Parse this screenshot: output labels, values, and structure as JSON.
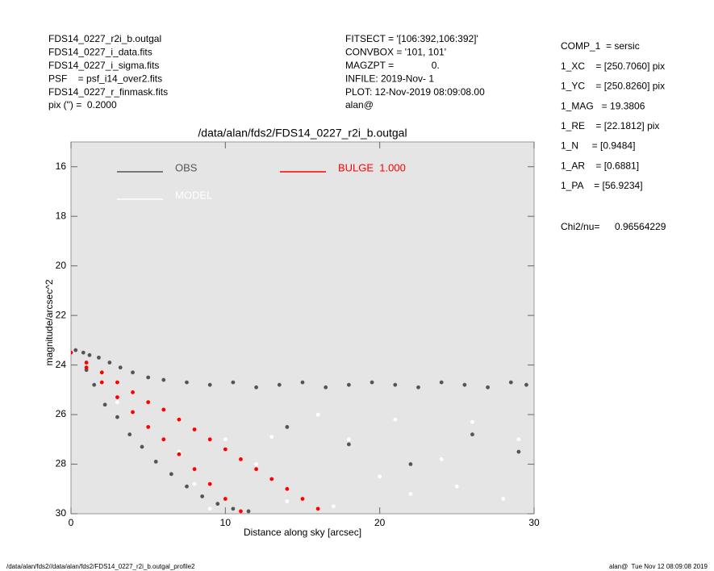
{
  "header_left": [
    "FDS14_0227_r2i_b.outgal",
    "FDS14_0227_i_data.fits",
    "FDS14_0227_i_sigma.fits",
    "PSF    = psf_i14_over2.fits",
    "FDS14_0227_r_finmask.fits",
    "pix (\") =  0.2000"
  ],
  "header_middle": [
    "FITSECT = '[106:392,106:392]'",
    "CONVBOX = '101, 101'",
    "MAGZPT =              0.",
    "INFILE: 2019-Nov- 1",
    "PLOT: 12-Nov-2019 08:09:08.00",
    "alan@"
  ],
  "header_right": [
    "COMP_1  = sersic",
    "1_XC    = [250.7060] pix",
    "1_YC    = [250.8260] pix",
    "1_MAG   = 19.3806",
    "1_RE    = [22.1812] pix",
    "1_N     = [0.9484]",
    "1_AR    = [0.6881]",
    "1_PA    = [56.9234]"
  ],
  "chi2": {
    "label": "Chi2/nu=",
    "value": "0.96564229"
  },
  "footer": {
    "left": "/data/alan/fds2//data/alan/fds2/FDS14_0227_r2i_b.outgal_profile2",
    "right": "alan@  Tue Nov 12 08:09:08 2019"
  },
  "chart_data": {
    "type": "scatter",
    "title": "/data/alan/fds2/FDS14_0227_r2i_b.outgal",
    "x_label": "Distance along sky [arcsec]",
    "y_label": "magnitude/arcsec^2",
    "xlim": [
      0,
      30
    ],
    "xticks": [
      0,
      10,
      20,
      30
    ],
    "ylim": [
      30,
      15
    ],
    "yticks": [
      16,
      18,
      20,
      22,
      24,
      26,
      28,
      30
    ],
    "series": [
      {
        "name": "OBS",
        "color": "#555555",
        "x": [
          0.3,
          0.8,
          1.2,
          1.8,
          2.5,
          3.2,
          4.0,
          5.0,
          6.0,
          7.5,
          9,
          10.5,
          12,
          13.5,
          15,
          16.5,
          18,
          19.5,
          21,
          22.5,
          24,
          25.5,
          27,
          28.5,
          29.5,
          1.0,
          1.5,
          2.2,
          3.0,
          3.8,
          4.6,
          5.5,
          6.5,
          7.5,
          8.5,
          9.5,
          10.5,
          11.5,
          14,
          18,
          22,
          26,
          29
        ],
        "values": [
          23.4,
          23.5,
          23.6,
          23.7,
          23.9,
          24.1,
          24.3,
          24.5,
          24.6,
          24.7,
          24.8,
          24.7,
          24.9,
          24.8,
          24.7,
          24.9,
          24.8,
          24.7,
          24.8,
          24.9,
          24.7,
          24.8,
          24.9,
          24.7,
          24.8,
          24.2,
          24.8,
          25.6,
          26.1,
          26.8,
          27.3,
          27.9,
          28.4,
          28.9,
          29.3,
          29.6,
          29.8,
          29.9,
          26.5,
          27.2,
          28.0,
          26.8,
          27.5
        ]
      },
      {
        "name": "MODEL",
        "color": "#ffffff",
        "x": [
          3,
          5,
          7,
          8,
          10,
          12,
          14,
          16,
          18,
          20,
          22,
          24,
          26,
          28,
          9,
          13,
          17,
          21,
          25,
          29
        ],
        "values": [
          25.5,
          26.5,
          27.5,
          28.8,
          27,
          28,
          29.5,
          26,
          27,
          28.5,
          29.2,
          27.8,
          26.3,
          29.4,
          29.8,
          26.9,
          29.7,
          26.2,
          28.9,
          27.0
        ]
      },
      {
        "name": "BULGE  1.000",
        "color": "#ff0000",
        "x": [
          0,
          1,
          2,
          3,
          4,
          5,
          6,
          7,
          8,
          9,
          10,
          11,
          12,
          13,
          14,
          15,
          16,
          1,
          2,
          3,
          4,
          5,
          6,
          7,
          8,
          9,
          10,
          11
        ],
        "values": [
          23.5,
          23.9,
          24.3,
          24.7,
          25.1,
          25.5,
          25.8,
          26.2,
          26.6,
          27.0,
          27.4,
          27.8,
          28.2,
          28.6,
          29.0,
          29.4,
          29.8,
          24.1,
          24.7,
          25.3,
          25.9,
          26.5,
          27.0,
          27.6,
          28.2,
          28.8,
          29.4,
          29.9
        ]
      }
    ]
  }
}
